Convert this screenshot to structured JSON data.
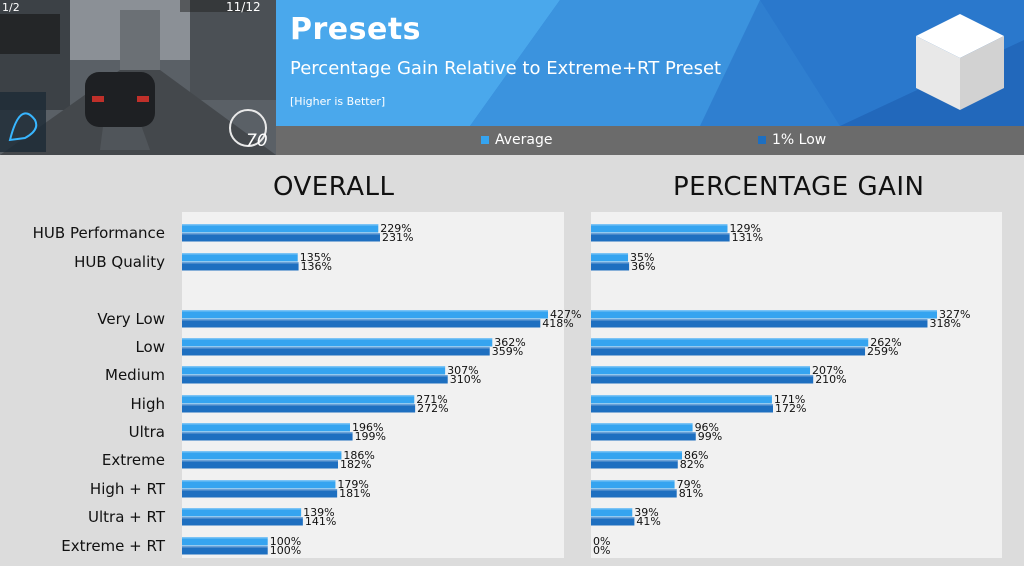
{
  "header": {
    "title": "Presets",
    "subtitle": "Percentage Gain Relative to Extreme+RT Preset",
    "note": "[Higher is Better]",
    "colors": {
      "header_blue": "#2f7fd0",
      "header_light": "#4a9fe6",
      "legend_bar": "#6b6b6b"
    }
  },
  "thumbnail": {
    "lap": "1/2",
    "position": "11/12",
    "speed": "70",
    "icon": "racing-game-screenshot"
  },
  "logo": {
    "icon": "white-cube-icon"
  },
  "legend": {
    "average": {
      "label": "Average",
      "color": "#35a4f0"
    },
    "low": {
      "label": "1% Low",
      "color": "#1e6fc0"
    }
  },
  "chart_data": [
    {
      "type": "bar",
      "orientation": "horizontal",
      "title": "OVERALL",
      "categories": [
        "HUB Performance",
        "HUB Quality",
        "",
        "Very Low",
        "Low",
        "Medium",
        "High",
        "Ultra",
        "Extreme",
        "High + RT",
        "Ultra + RT",
        "Extreme + RT"
      ],
      "series": [
        {
          "name": "Average",
          "values": [
            229,
            135,
            null,
            427,
            362,
            307,
            271,
            196,
            186,
            179,
            139,
            100
          ],
          "labels": [
            "229%",
            "135%",
            "",
            "427%",
            "362%",
            "307%",
            "271%",
            "196%",
            "186%",
            "179%",
            "139%",
            "100%"
          ]
        },
        {
          "name": "1% Low",
          "values": [
            231,
            136,
            null,
            418,
            359,
            310,
            272,
            199,
            182,
            181,
            141,
            100
          ],
          "labels": [
            "231%",
            "136%",
            "",
            "418%",
            "359%",
            "310%",
            "272%",
            "199%",
            "182%",
            "181%",
            "141%",
            "100%"
          ]
        }
      ],
      "xlim": [
        0,
        460
      ],
      "grid": false
    },
    {
      "type": "bar",
      "orientation": "horizontal",
      "title": "PERCENTAGE GAIN",
      "categories": [
        "HUB Performance",
        "HUB Quality",
        "",
        "Very Low",
        "Low",
        "Medium",
        "High",
        "Ultra",
        "Extreme",
        "High + RT",
        "Ultra + RT",
        "Extreme + RT"
      ],
      "series": [
        {
          "name": "Average",
          "values": [
            129,
            35,
            null,
            327,
            262,
            207,
            171,
            96,
            86,
            79,
            39,
            0
          ],
          "labels": [
            "129%",
            "35%",
            "",
            "327%",
            "262%",
            "207%",
            "171%",
            "96%",
            "86%",
            "79%",
            "39%",
            "0%"
          ]
        },
        {
          "name": "1% Low",
          "values": [
            131,
            36,
            null,
            318,
            259,
            210,
            172,
            99,
            82,
            81,
            41,
            0
          ],
          "labels": [
            "131%",
            "36%",
            "",
            "318%",
            "259%",
            "210%",
            "172%",
            "99%",
            "82%",
            "81%",
            "41%",
            "0%"
          ]
        }
      ],
      "xlim": [
        0,
        400
      ],
      "grid": false
    }
  ]
}
